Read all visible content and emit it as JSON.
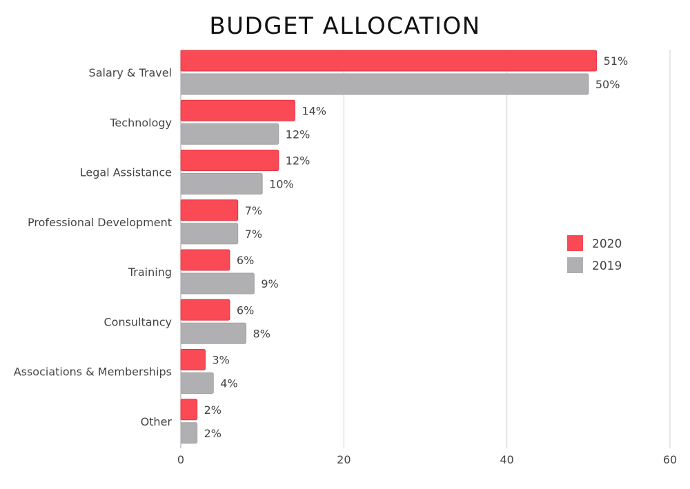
{
  "chart_data": {
    "type": "bar",
    "orientation": "horizontal",
    "title": "BUDGET ALLOCATION",
    "categories": [
      "Salary & Travel",
      "Technology",
      "Legal Assistance",
      "Professional Development",
      "Training",
      "Consultancy",
      "Associations & Memberships",
      "Other"
    ],
    "series": [
      {
        "name": "2020",
        "color": "#f94a55",
        "values": [
          51,
          14,
          12,
          7,
          6,
          6,
          3,
          2
        ],
        "labels": [
          "51%",
          "14%",
          "12%",
          "7%",
          "6%",
          "6%",
          "3%",
          "2%"
        ]
      },
      {
        "name": "2019",
        "color": "#b0afb1",
        "values": [
          50,
          12,
          10,
          7,
          9,
          8,
          4,
          2
        ],
        "labels": [
          "50%",
          "12%",
          "10%",
          "7%",
          "9%",
          "8%",
          "4%",
          "2%"
        ]
      }
    ],
    "xlim": [
      0,
      60
    ],
    "xticks": [
      "0",
      "20",
      "40",
      "60"
    ],
    "grid": "vertical",
    "legend": "right"
  }
}
